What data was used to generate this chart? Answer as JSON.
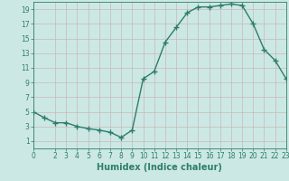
{
  "x": [
    0,
    1,
    2,
    3,
    4,
    5,
    6,
    7,
    8,
    9,
    10,
    11,
    12,
    13,
    14,
    15,
    16,
    17,
    18,
    19,
    20,
    21,
    22,
    23
  ],
  "y": [
    5,
    4.2,
    3.5,
    3.5,
    3.0,
    2.7,
    2.5,
    2.2,
    1.5,
    2.5,
    9.5,
    10.5,
    14.5,
    16.5,
    18.5,
    19.3,
    19.3,
    19.5,
    19.7,
    19.5,
    17.0,
    13.5,
    12.0,
    9.5
  ],
  "line_color": "#2d7d6b",
  "marker": "+",
  "markersize": 4,
  "linewidth": 1.0,
  "bg_color": "#cce8e4",
  "grid_color": "#c8b8b8",
  "xlabel": "Humidex (Indice chaleur)",
  "xlim": [
    0,
    23
  ],
  "ylim": [
    0,
    20
  ],
  "xticks": [
    0,
    2,
    3,
    4,
    5,
    6,
    7,
    8,
    9,
    10,
    11,
    12,
    13,
    14,
    15,
    16,
    17,
    18,
    19,
    20,
    21,
    22,
    23
  ],
  "yticks": [
    1,
    3,
    5,
    7,
    9,
    11,
    13,
    15,
    17,
    19
  ],
  "tick_fontsize": 5.5,
  "xlabel_fontsize": 7.0,
  "tick_color": "#2d7d6b",
  "label_color": "#2d7d6b"
}
